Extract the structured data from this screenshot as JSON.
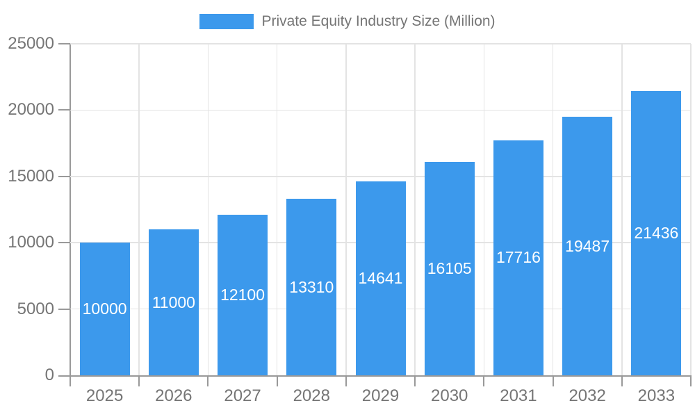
{
  "chart_data": {
    "type": "bar",
    "title": "Private Equity Industry Size (Million)",
    "categories": [
      "2025",
      "2026",
      "2027",
      "2028",
      "2029",
      "2030",
      "2031",
      "2032",
      "2033"
    ],
    "values": [
      10000,
      11000,
      12100,
      13310,
      14641,
      16105,
      17716,
      19487,
      21436
    ],
    "value_labels": [
      "10000",
      "11000",
      "12100",
      "13310",
      "14641",
      "16105",
      "17716",
      "19487",
      "21436"
    ],
    "xlabel": "",
    "ylabel": "",
    "ylim": [
      0,
      25000
    ],
    "yticks": [
      0,
      5000,
      10000,
      15000,
      20000,
      25000
    ],
    "ytick_labels": [
      "0",
      "5000",
      "10000",
      "15000",
      "20000",
      "25000"
    ],
    "grid": true,
    "legend_position": "top",
    "value_labels_inside_bars": true
  },
  "colors": {
    "bar": "#3C99EC",
    "value_label": "#FFFFFF",
    "axis_line": "#999999",
    "gridline": "#E3E3E3",
    "tick_label": "#757575",
    "legend_text": "#757575",
    "background": "#FFFFFF"
  }
}
